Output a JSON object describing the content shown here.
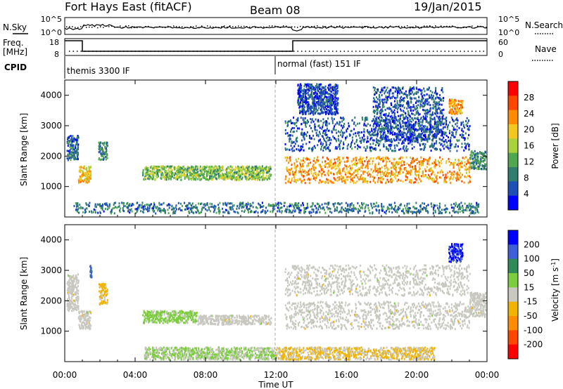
{
  "header": {
    "title": "Fort Hays East (fitACF)",
    "beam": "Beam 08",
    "date": "19/Jan/2015"
  },
  "status_panels": {
    "nsky_label": "N.Sky",
    "nsearch_label": "N.Search",
    "noise_ticks": [
      "10^5",
      "10^0"
    ],
    "freq_label": "Freq.",
    "freq_unit": "[MHz]",
    "freq_ticks": [
      "18",
      "8"
    ],
    "nave_label": "Nave",
    "nave_ticks": [
      "60",
      "0"
    ],
    "cpid_label": "CPID",
    "cpid_segments": [
      {
        "label": "themis 3300 IF",
        "start_hour": 0
      },
      {
        "label": "normal (fast) 151 IF",
        "start_hour": 12
      }
    ]
  },
  "colors": {
    "power_scale": [
      "#0000ff",
      "#1e4fb4",
      "#2e7d6e",
      "#4fa84f",
      "#a8d23c",
      "#f2c81e",
      "#ff8c00",
      "#ff4500",
      "#ff0000"
    ],
    "velocity_scale": [
      "#0000ff",
      "#3f5fd6",
      "#2e8b57",
      "#7ccd3e",
      "#c8c8c0",
      "#f0b400",
      "#ff8c00",
      "#ff4500",
      "#ff0000"
    ],
    "ground_scatter": "#c8c8c0"
  },
  "chart_data": [
    {
      "type": "heatmap",
      "panel": "power",
      "ylabel": "Slant Range [km]",
      "ylim": [
        0,
        4500
      ],
      "yticks": [
        1000,
        2000,
        3000,
        4000
      ],
      "xlim": [
        0,
        24
      ],
      "colorbar": {
        "label": "Power [dB]",
        "range": [
          0,
          32
        ],
        "ticks": [
          4,
          8,
          12,
          16,
          20,
          24,
          28
        ]
      },
      "bands": [
        {
          "x": [
            0.1,
            0.75
          ],
          "y": [
            1900,
            2700
          ],
          "v": 7
        },
        {
          "x": [
            0.75,
            1.45
          ],
          "y": [
            1150,
            1700
          ],
          "v": 20
        },
        {
          "x": [
            1.9,
            2.4
          ],
          "y": [
            1900,
            2500
          ],
          "v": 10
        },
        {
          "x": [
            4.4,
            11.7
          ],
          "y": [
            1250,
            1700
          ],
          "v": 14
        },
        {
          "x": [
            12.5,
            23.0
          ],
          "y": [
            1150,
            2000
          ],
          "v": 22
        },
        {
          "x": [
            12.5,
            23.0
          ],
          "y": [
            2200,
            3300
          ],
          "v": 6
        },
        {
          "x": [
            13.2,
            15.5
          ],
          "y": [
            3400,
            4400
          ],
          "v": 5
        },
        {
          "x": [
            17.5,
            21.5
          ],
          "y": [
            2500,
            4300
          ],
          "v": 6
        },
        {
          "x": [
            21.8,
            22.6
          ],
          "y": [
            3400,
            3900
          ],
          "v": 22
        },
        {
          "x": [
            23.0,
            23.9
          ],
          "y": [
            1600,
            2200
          ],
          "v": 10
        },
        {
          "x": [
            0.5,
            23.5
          ],
          "y": [
            150,
            500
          ],
          "v": 8
        }
      ]
    },
    {
      "type": "heatmap",
      "panel": "velocity",
      "ylabel": "Slant Range [km]",
      "xlabel": "Time UT",
      "ylim": [
        0,
        4500
      ],
      "yticks": [
        1000,
        2000,
        3000,
        4000
      ],
      "xlim": [
        0,
        24
      ],
      "xticks": [
        "00:00",
        "04:00",
        "08:00",
        "12:00",
        "16:00",
        "20:00",
        "00:00"
      ],
      "colorbar": {
        "label": "Velocity [m s^-1]",
        "range": [
          -250,
          250
        ],
        "ticks": [
          "200",
          "100",
          "50",
          "15",
          "-15",
          "-50",
          "-100",
          "-200"
        ]
      },
      "bands": [
        {
          "x": [
            0.1,
            0.75
          ],
          "y": [
            1700,
            2900
          ],
          "v": 0
        },
        {
          "x": [
            0.75,
            1.45
          ],
          "y": [
            1100,
            1700
          ],
          "v": 0
        },
        {
          "x": [
            1.4,
            1.5
          ],
          "y": [
            2800,
            3200
          ],
          "v": 150
        },
        {
          "x": [
            1.9,
            2.4
          ],
          "y": [
            1900,
            2600
          ],
          "v": -40
        },
        {
          "x": [
            4.4,
            7.5
          ],
          "y": [
            1300,
            1700
          ],
          "v": 40
        },
        {
          "x": [
            7.5,
            11.7
          ],
          "y": [
            1250,
            1550
          ],
          "v": 0
        },
        {
          "x": [
            12.5,
            23.0
          ],
          "y": [
            1100,
            2000
          ],
          "v": 0
        },
        {
          "x": [
            12.5,
            23.0
          ],
          "y": [
            2200,
            3200
          ],
          "v": 0
        },
        {
          "x": [
            21.8,
            22.6
          ],
          "y": [
            3300,
            3900
          ],
          "v": 200
        },
        {
          "x": [
            23.0,
            23.9
          ],
          "y": [
            1500,
            2300
          ],
          "v": 0
        },
        {
          "x": [
            4.5,
            12.0
          ],
          "y": [
            100,
            500
          ],
          "v": 30
        },
        {
          "x": [
            12.0,
            21.0
          ],
          "y": [
            100,
            500
          ],
          "v": -30
        }
      ]
    }
  ]
}
